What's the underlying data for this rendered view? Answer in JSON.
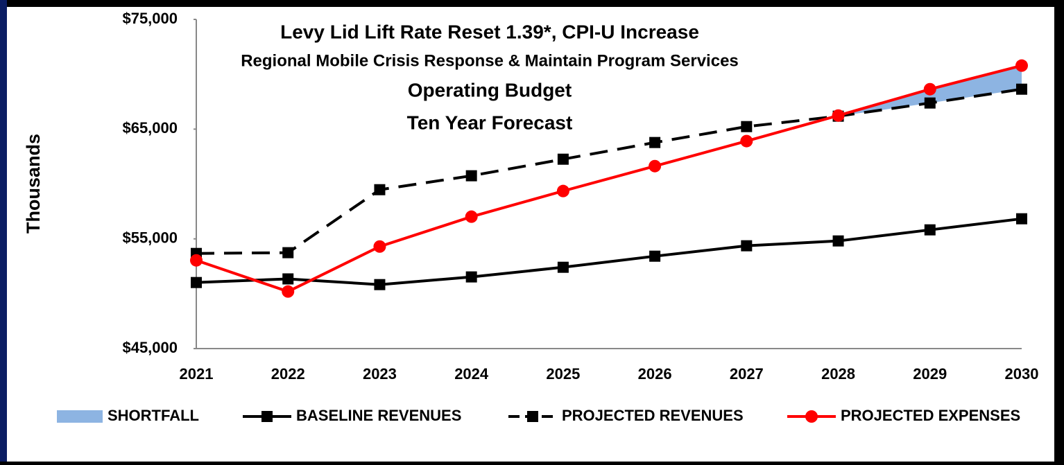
{
  "chart_data": {
    "type": "line",
    "title": "Levy Lid Lift Rate Reset 1.39*, CPI-U Increase",
    "subtitle": "Regional Mobile Crisis Response & Maintain Program Services",
    "annotations": [
      "Operating Budget",
      "Ten Year Forecast"
    ],
    "y_label": "Thousands",
    "categories": [
      "2021",
      "2022",
      "2023",
      "2024",
      "2025",
      "2026",
      "2027",
      "2028",
      "2029",
      "2030"
    ],
    "series": [
      {
        "name": "SHORTFALL",
        "color": "#8db4e2",
        "kind": "area",
        "values": [
          null,
          null,
          null,
          null,
          null,
          null,
          null,
          60,
          1260,
          2150
        ]
      },
      {
        "name": "BASELINE REVENUES",
        "color": "#000000",
        "marker": "square",
        "dashed": false,
        "values": [
          51020,
          51350,
          50830,
          51530,
          52410,
          53420,
          54370,
          54810,
          55820,
          56830
        ]
      },
      {
        "name": "PROJECTED REVENUES",
        "color": "#000000",
        "marker": "square",
        "dashed": true,
        "values": [
          53670,
          53740,
          59480,
          60750,
          62260,
          63780,
          65230,
          66180,
          67380,
          68640
        ]
      },
      {
        "name": "PROJECTED EXPENSES",
        "color": "#ff0000",
        "marker": "circle",
        "dashed": false,
        "values": [
          53040,
          50200,
          54300,
          57020,
          59360,
          61630,
          63910,
          66240,
          68640,
          70790
        ]
      }
    ],
    "ylim": [
      45000,
      75000
    ],
    "yticks": [
      {
        "value": 45000,
        "label": "$45,000"
      },
      {
        "value": 55000,
        "label": "$55,000"
      },
      {
        "value": 65000,
        "label": "$65,000"
      },
      {
        "value": 75000,
        "label": "$75,000"
      }
    ],
    "grid": false,
    "legend": "bottom"
  }
}
